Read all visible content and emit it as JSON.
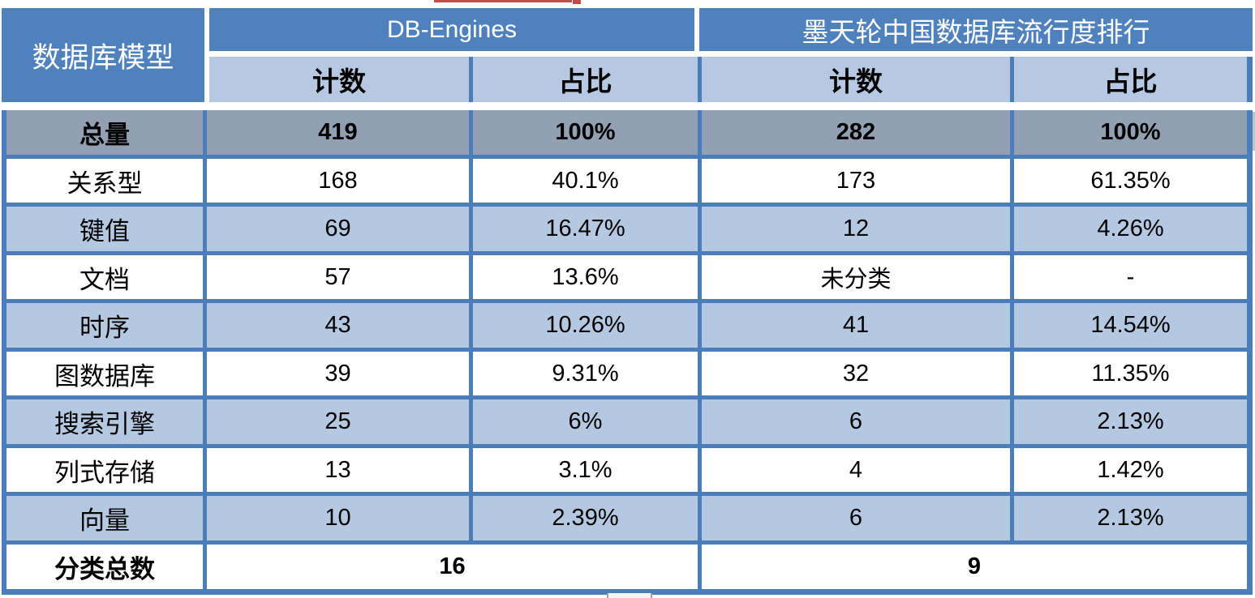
{
  "colors": {
    "header_blue": "#4f81bd",
    "border_blue": "#4a7db9",
    "subheader_blue": "#b7c9e2",
    "row_alt_blue": "#b5c8e1",
    "total_row_gray": "#93a0b3",
    "artifact_red": "#c24b4a"
  },
  "table": {
    "corner_header": "数据库模型",
    "groups": [
      {
        "title": "DB-Engines",
        "sub_headers": [
          "计数",
          "占比"
        ]
      },
      {
        "title": "墨天轮中国数据库流行度排行",
        "sub_headers": [
          "计数",
          "占比"
        ]
      }
    ],
    "rows": [
      {
        "label": "总量",
        "v": [
          "419",
          "100%",
          "282",
          "100%"
        ]
      },
      {
        "label": "关系型",
        "v": [
          "168",
          "40.1%",
          "173",
          "61.35%"
        ]
      },
      {
        "label": "键值",
        "v": [
          "69",
          "16.47%",
          "12",
          "4.26%"
        ]
      },
      {
        "label": "文档",
        "v": [
          "57",
          "13.6%",
          "未分类",
          "-"
        ]
      },
      {
        "label": "时序",
        "v": [
          "43",
          "10.26%",
          "41",
          "14.54%"
        ]
      },
      {
        "label": "图数据库",
        "v": [
          "39",
          "9.31%",
          "32",
          "11.35%"
        ]
      },
      {
        "label": "搜索引擎",
        "v": [
          "25",
          "6%",
          "6",
          "2.13%"
        ]
      },
      {
        "label": "列式存储",
        "v": [
          "13",
          "3.1%",
          "4",
          "1.42%"
        ]
      },
      {
        "label": "向量",
        "v": [
          "10",
          "2.39%",
          "6",
          "2.13%"
        ]
      }
    ],
    "footer": {
      "label": "分类总数",
      "dbe_total": "16",
      "modb_total": "9"
    }
  },
  "chart_data": {
    "type": "table",
    "columns": [
      "数据库模型",
      "DB-Engines 计数",
      "DB-Engines 占比",
      "墨天轮中国数据库流行度排行 计数",
      "墨天轮中国数据库流行度排行 占比"
    ],
    "rows": [
      [
        "总量",
        "419",
        "100%",
        "282",
        "100%"
      ],
      [
        "关系型",
        "168",
        "40.1%",
        "173",
        "61.35%"
      ],
      [
        "键值",
        "69",
        "16.47%",
        "12",
        "4.26%"
      ],
      [
        "文档",
        "57",
        "13.6%",
        "未分类",
        "-"
      ],
      [
        "时序",
        "43",
        "10.26%",
        "41",
        "14.54%"
      ],
      [
        "图数据库",
        "39",
        "9.31%",
        "32",
        "11.35%"
      ],
      [
        "搜索引擎",
        "25",
        "6%",
        "6",
        "2.13%"
      ],
      [
        "列式存储",
        "13",
        "3.1%",
        "4",
        "1.42%"
      ],
      [
        "向量",
        "10",
        "2.39%",
        "6",
        "2.13%"
      ],
      [
        "分类总数",
        "16",
        "",
        "9",
        ""
      ]
    ],
    "layout": {
      "grid": true,
      "total_row_highlight": "gray",
      "alternating_rows": true
    }
  }
}
